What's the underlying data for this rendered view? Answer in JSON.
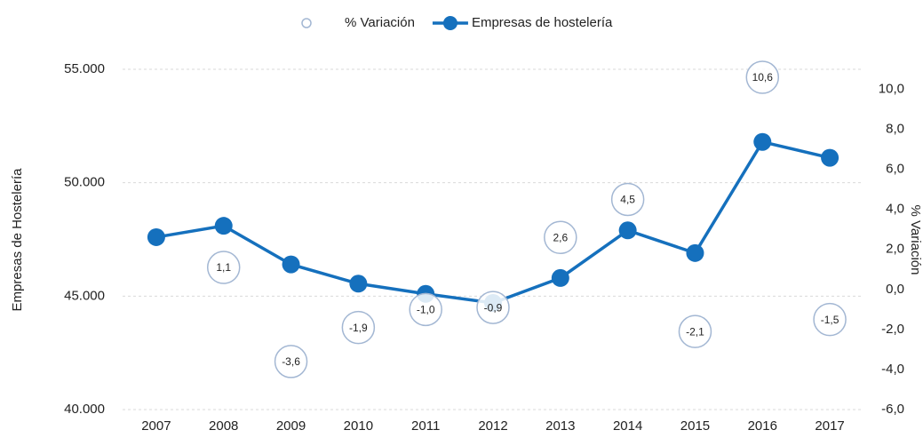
{
  "chart_data": {
    "type": "line",
    "categories": [
      "2007",
      "2008",
      "2009",
      "2010",
      "2011",
      "2012",
      "2013",
      "2014",
      "2015",
      "2016",
      "2017"
    ],
    "y_label": "Empresas de Hostelería",
    "y2_label": "% Variación",
    "ylim": [
      40000,
      55000
    ],
    "yticks": [
      {
        "value": 40000,
        "label": "40.000"
      },
      {
        "value": 45000,
        "label": "45.000"
      },
      {
        "value": 50000,
        "label": "50.000"
      },
      {
        "value": 55000,
        "label": "55.000"
      }
    ],
    "y2lim": [
      -6,
      11
    ],
    "y2ticks": [
      {
        "value": -6,
        "label": "-6,0"
      },
      {
        "value": -4,
        "label": "-4,0"
      },
      {
        "value": -2,
        "label": "-2,0"
      },
      {
        "value": 0,
        "label": "0,0"
      },
      {
        "value": 2,
        "label": "2,0"
      },
      {
        "value": 4,
        "label": "4,0"
      },
      {
        "value": 6,
        "label": "6,0"
      },
      {
        "value": 8,
        "label": "8,0"
      },
      {
        "value": 10,
        "label": "10,0"
      }
    ],
    "grid": true,
    "legend": "top",
    "series": [
      {
        "name": "% Variación",
        "type": "scatter",
        "axis": "y2",
        "color": "#a3b7d3",
        "values": [
          null,
          1.1,
          -3.6,
          -1.9,
          -1.0,
          -0.9,
          2.6,
          4.5,
          -2.1,
          10.6,
          -1.5
        ],
        "value_labels": [
          null,
          "1,1",
          "-3,6",
          "-1,9",
          "-1,0",
          "-0,9",
          "2,6",
          "4,5",
          "-2,1",
          "10,6",
          "-1,5"
        ]
      },
      {
        "name": "Empresas de hostelería",
        "type": "line",
        "axis": "y",
        "color": "#1570bd",
        "values": [
          47600,
          48100,
          46400,
          45550,
          45100,
          44700,
          45800,
          47900,
          46900,
          51800,
          51100
        ]
      }
    ]
  }
}
